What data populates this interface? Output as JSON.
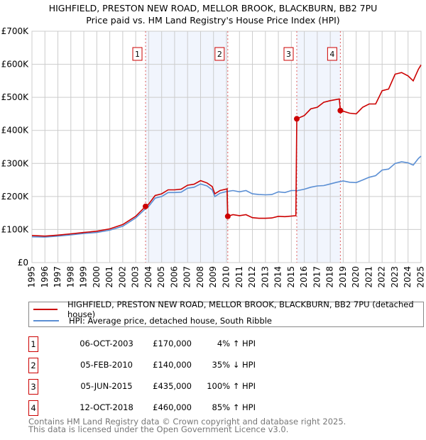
{
  "chart_data": {
    "type": "line",
    "title": "HIGHFIELD, PRESTON NEW ROAD, MELLOR BROOK, BLACKBURN, BB2 7PU",
    "subtitle": "Price paid vs. HM Land Registry's House Price Index (HPI)",
    "xlim": [
      1995,
      2025
    ],
    "ylim": [
      0,
      700000
    ],
    "x_ticks": [
      "1995",
      "1996",
      "1997",
      "1998",
      "1999",
      "2000",
      "2001",
      "2002",
      "2003",
      "2004",
      "2005",
      "2006",
      "2007",
      "2008",
      "2009",
      "2010",
      "2011",
      "2012",
      "2013",
      "2014",
      "2015",
      "2016",
      "2017",
      "2018",
      "2019",
      "2020",
      "2021",
      "2022",
      "2023",
      "2024",
      "2025"
    ],
    "y_ticks": [
      {
        "value": 0,
        "label": "£0"
      },
      {
        "value": 100000,
        "label": "£100K"
      },
      {
        "value": 200000,
        "label": "£200K"
      },
      {
        "value": 300000,
        "label": "£300K"
      },
      {
        "value": 400000,
        "label": "£400K"
      },
      {
        "value": 500000,
        "label": "£500K"
      },
      {
        "value": 600000,
        "label": "£600K"
      },
      {
        "value": 700000,
        "label": "£700K"
      }
    ],
    "grid": true,
    "shaded_periods": [
      [
        2003.76,
        2010.1
      ],
      [
        2015.42,
        2018.78
      ]
    ],
    "series": [
      {
        "name": "HIGHFIELD, PRESTON NEW ROAD, MELLOR BROOK, BLACKBURN, BB2 7PU (detached house)",
        "color": "#cc0000",
        "x": [
          1995,
          1996,
          1997,
          1998,
          1999,
          2000,
          2001,
          2002,
          2003,
          2003.76,
          2004,
          2004.5,
          2005,
          2005.5,
          2006,
          2006.5,
          2007,
          2007.5,
          2008,
          2008.5,
          2008.9,
          2009.1,
          2009.5,
          2010.05,
          2010.1,
          2010.5,
          2011,
          2011.5,
          2012,
          2012.5,
          2013,
          2013.5,
          2014,
          2014.5,
          2015.35,
          2015.42,
          2016,
          2016.5,
          2017,
          2017.5,
          2018,
          2018.7,
          2018.78,
          2019,
          2019.5,
          2020,
          2020.5,
          2021,
          2021.5,
          2022,
          2022.5,
          2023,
          2023.5,
          2024,
          2024.4,
          2024.8,
          2025
        ],
        "y": [
          82000,
          80000,
          83000,
          87000,
          91000,
          95000,
          102000,
          115000,
          140000,
          170000,
          177000,
          203000,
          208000,
          220000,
          220000,
          222000,
          234000,
          237000,
          248000,
          241000,
          230000,
          208000,
          218000,
          223000,
          140000,
          145000,
          142000,
          145000,
          136000,
          134000,
          134000,
          135000,
          140000,
          139000,
          142000,
          435000,
          445000,
          465000,
          470000,
          485000,
          490000,
          495000,
          460000,
          458000,
          452000,
          450000,
          470000,
          480000,
          480000,
          520000,
          525000,
          570000,
          575000,
          565000,
          550000,
          585000,
          598000
        ]
      },
      {
        "name": "HPI: Average price, detached house, South Ribble",
        "color": "#5b8fd4",
        "x": [
          1995,
          1996,
          1997,
          1998,
          1999,
          2000,
          2001,
          2002,
          2003,
          2003.76,
          2004,
          2004.5,
          2005,
          2005.5,
          2006,
          2006.5,
          2007,
          2007.5,
          2008,
          2008.5,
          2008.9,
          2009.1,
          2009.5,
          2010,
          2010.5,
          2011,
          2011.5,
          2012,
          2012.5,
          2013,
          2013.5,
          2014,
          2014.5,
          2015,
          2015.5,
          2016,
          2016.5,
          2017,
          2017.5,
          2018,
          2018.5,
          2019,
          2019.5,
          2020,
          2020.5,
          2021,
          2021.5,
          2022,
          2022.5,
          2023,
          2023.5,
          2024,
          2024.4,
          2024.8,
          2025
        ],
        "y": [
          78000,
          77000,
          80000,
          84000,
          88000,
          91000,
          98000,
          110000,
          135000,
          163000,
          170000,
          195000,
          200000,
          212000,
          212000,
          213000,
          225000,
          228000,
          238000,
          232000,
          220000,
          200000,
          210000,
          215000,
          218000,
          214000,
          218000,
          208000,
          206000,
          205000,
          206000,
          214000,
          212000,
          218000,
          218000,
          222000,
          228000,
          232000,
          233000,
          238000,
          243000,
          247000,
          243000,
          242000,
          250000,
          258000,
          263000,
          280000,
          283000,
          300000,
          305000,
          302000,
          295000,
          315000,
          322000
        ]
      }
    ],
    "sales": [
      {
        "id": "1",
        "x": 2003.76,
        "price": 170000,
        "date": "06-OCT-2003",
        "price_label": "£170,000",
        "hpi": "4% ↑ HPI"
      },
      {
        "id": "2",
        "x": 2010.1,
        "price": 140000,
        "date": "05-FEB-2010",
        "price_label": "£140,000",
        "hpi": "35% ↓ HPI"
      },
      {
        "id": "3",
        "x": 2015.42,
        "price": 435000,
        "date": "05-JUN-2015",
        "price_label": "£435,000",
        "hpi": "100% ↑ HPI"
      },
      {
        "id": "4",
        "x": 2018.78,
        "price": 460000,
        "date": "12-OCT-2018",
        "price_label": "£460,000",
        "hpi": "85% ↑ HPI"
      }
    ]
  },
  "legend": {
    "red": "HIGHFIELD, PRESTON NEW ROAD, MELLOR BROOK, BLACKBURN, BB2 7PU (detached house)",
    "blue": "HPI: Average price, detached house, South Ribble"
  },
  "footer": {
    "line1": "Contains HM Land Registry data © Crown copyright and database right 2025.",
    "line2": "This data is licensed under the Open Government Licence v3.0."
  }
}
